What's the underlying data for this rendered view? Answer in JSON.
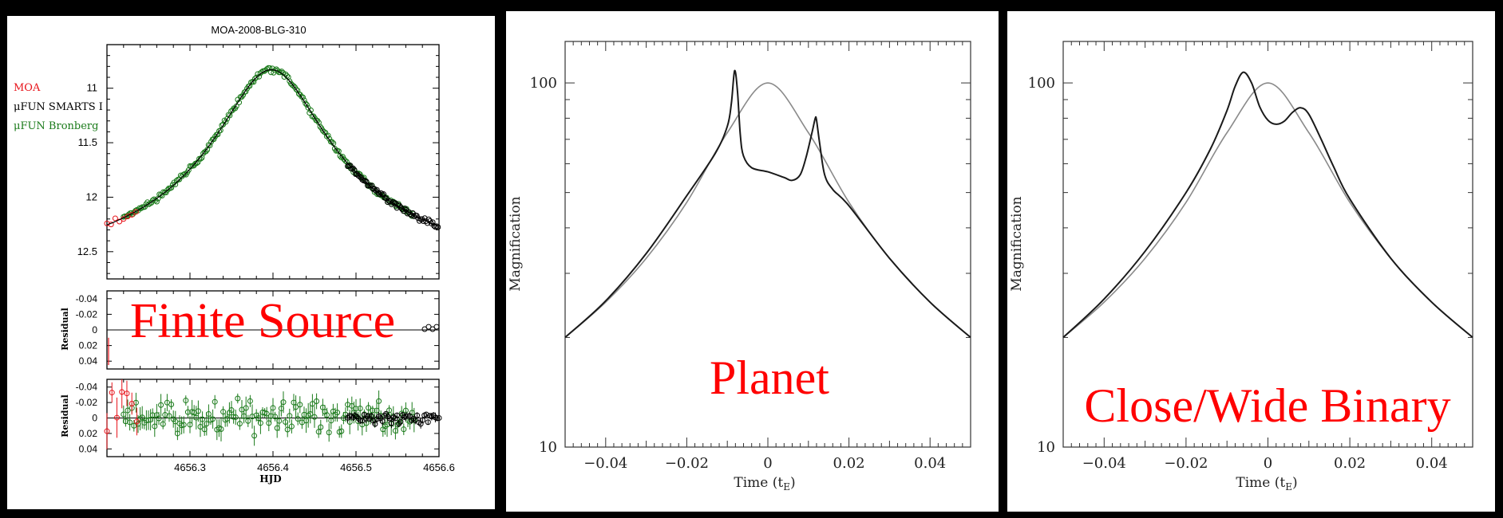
{
  "colors": {
    "moa": "#e8141b",
    "smarts": "#000000",
    "bronberg": "#1a7a1a",
    "model_dark": "#1a1a1a",
    "model_grey": "#8a8a8a",
    "overlay": "#ff0000"
  },
  "chart_data": [
    {
      "type": "scatter",
      "title": "MOA-2008-BLG-310",
      "overlay_text": "Finite Source",
      "xlabel": "HJD",
      "xlim": [
        4656.2,
        4656.6
      ],
      "xticks": [
        "4656.3",
        "4656.4",
        "4656.5",
        "4656.6"
      ],
      "top": {
        "ylim": [
          12.75,
          10.6
        ],
        "yticks": [
          "11",
          "11.5",
          "12",
          "12.5"
        ],
        "legend": [
          "MOA",
          "μFUN SMARTS I",
          "μFUN Bronberg"
        ],
        "model": {
          "peak_hjd": 4656.398,
          "peak_mag": 10.83,
          "baseline_shift": 2.1,
          "width": 0.085
        }
      },
      "residual_panels": [
        {
          "ylabel": "Residual",
          "ylim": [
            0.05,
            -0.05
          ],
          "yticks": [
            "-0.04",
            "-0.02",
            "0",
            "0.02",
            "0.04"
          ]
        },
        {
          "ylabel": "Residual",
          "ylim": [
            0.05,
            -0.05
          ],
          "yticks": [
            "-0.04",
            "-0.02",
            "0",
            "0.02",
            "0.04"
          ]
        }
      ],
      "series": [
        {
          "name": "MOA",
          "x_range": [
            4656.2,
            4656.24
          ],
          "residual_scatter": 0.02
        },
        {
          "name": "μFUN SMARTS I",
          "x_range": [
            4656.49,
            4656.6
          ],
          "residual_scatter": 0.004
        },
        {
          "name": "μFUN Bronberg",
          "x_range": [
            4656.22,
            4656.57
          ],
          "residual_scatter": 0.01
        }
      ]
    },
    {
      "type": "line",
      "overlay_text": "Planet",
      "xlabel": "Time (tE)",
      "ylabel": "Magnification",
      "xlim": [
        -0.05,
        0.05
      ],
      "ylim": [
        10,
        130
      ],
      "yscale": "log",
      "xticks": [
        "−0.04",
        "−0.02",
        "0",
        "0.02",
        "0.04"
      ],
      "yticks": [
        "10",
        "100"
      ],
      "series": [
        {
          "kind": "point-lens",
          "color": "grey",
          "points": [
            [
              -0.05,
              20
            ],
            [
              -0.04,
              25
            ],
            [
              -0.03,
              33
            ],
            [
              -0.02,
              47
            ],
            [
              -0.01,
              73
            ],
            [
              0,
              100
            ],
            [
              0.01,
              73
            ],
            [
              0.02,
              47
            ],
            [
              0.03,
              33
            ],
            [
              0.04,
              25
            ],
            [
              0.05,
              20
            ]
          ]
        },
        {
          "kind": "planetary",
          "color": "dark",
          "points": [
            [
              -0.05,
              20
            ],
            [
              -0.04,
              25.2
            ],
            [
              -0.03,
              34
            ],
            [
              -0.02,
              49
            ],
            [
              -0.013,
              64
            ],
            [
              -0.01,
              76
            ],
            [
              -0.009,
              88
            ],
            [
              -0.0082,
              108
            ],
            [
              -0.0075,
              95
            ],
            [
              -0.0068,
              72
            ],
            [
              -0.006,
              63
            ],
            [
              -0.004,
              58.5
            ],
            [
              0,
              57
            ],
            [
              0.004,
              55
            ],
            [
              0.006,
              54
            ],
            [
              0.008,
              56
            ],
            [
              0.0095,
              63
            ],
            [
              0.011,
              74
            ],
            [
              0.0117,
              80
            ],
            [
              0.012,
              79
            ],
            [
              0.0128,
              68
            ],
            [
              0.014,
              56
            ],
            [
              0.016,
              51
            ],
            [
              0.02,
              46
            ],
            [
              0.03,
              33
            ],
            [
              0.04,
              25
            ],
            [
              0.05,
              20
            ]
          ]
        }
      ]
    },
    {
      "type": "line",
      "overlay_text": "Close/Wide Binary",
      "xlabel": "Time (tE)",
      "ylabel": "Magnification",
      "xlim": [
        -0.05,
        0.05
      ],
      "ylim": [
        10,
        130
      ],
      "yscale": "log",
      "xticks": [
        "−0.04",
        "−0.02",
        "0",
        "0.02",
        "0.04"
      ],
      "yticks": [
        "10",
        "100"
      ],
      "series": [
        {
          "kind": "point-lens",
          "color": "grey",
          "points": [
            [
              -0.05,
              20
            ],
            [
              -0.04,
              25
            ],
            [
              -0.03,
              33
            ],
            [
              -0.02,
              47
            ],
            [
              -0.01,
              73
            ],
            [
              0,
              100
            ],
            [
              0.01,
              73
            ],
            [
              0.02,
              47
            ],
            [
              0.03,
              33
            ],
            [
              0.04,
              25
            ],
            [
              0.05,
              20
            ]
          ]
        },
        {
          "kind": "binary",
          "color": "dark",
          "points": [
            [
              -0.05,
              20
            ],
            [
              -0.04,
              25.5
            ],
            [
              -0.03,
              34.5
            ],
            [
              -0.02,
              50
            ],
            [
              -0.014,
              66
            ],
            [
              -0.01,
              84
            ],
            [
              -0.008,
              98
            ],
            [
              -0.006,
              107
            ],
            [
              -0.004,
              100
            ],
            [
              -0.002,
              86
            ],
            [
              0,
              79
            ],
            [
              0.002,
              77
            ],
            [
              0.004,
              78.5
            ],
            [
              0.006,
              83
            ],
            [
              0.008,
              85.5
            ],
            [
              0.01,
              82
            ],
            [
              0.013,
              70
            ],
            [
              0.016,
              59
            ],
            [
              0.02,
              48
            ],
            [
              0.03,
              33
            ],
            [
              0.04,
              25
            ],
            [
              0.05,
              20
            ]
          ]
        }
      ]
    }
  ]
}
